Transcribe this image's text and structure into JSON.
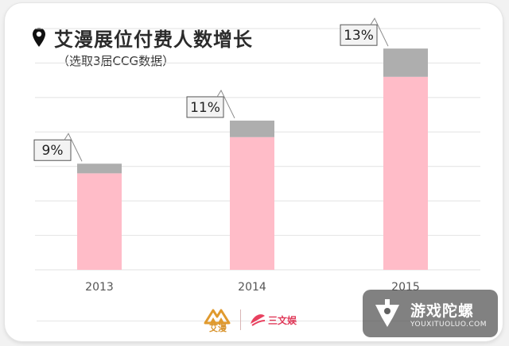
{
  "header": {
    "title": "艾漫展位付费人数增长",
    "subtitle": "（选取3届CCG数据）"
  },
  "chart_data": {
    "type": "bar",
    "categories": [
      "2013",
      "2014",
      "2015"
    ],
    "stacked": true,
    "series": [
      {
        "values": [
          28,
          38.5,
          56
        ]
      },
      {
        "values": [
          2.8,
          4.8,
          8.2
        ]
      }
    ],
    "data_labels": [
      "9%",
      "11%",
      "13%"
    ],
    "ylim": [
      0,
      70
    ],
    "grid": true,
    "colors": {
      "base": "#ffbcc8",
      "top": "#aeaeae",
      "grid": "#e2e2e2",
      "axis_text": "#555555"
    }
  },
  "footer": {
    "logo_left": "艾漫",
    "logo_right": "三文娱"
  },
  "watermark": {
    "title": "游戏陀螺",
    "subtitle": "YOUXITUOLUO.COM"
  }
}
